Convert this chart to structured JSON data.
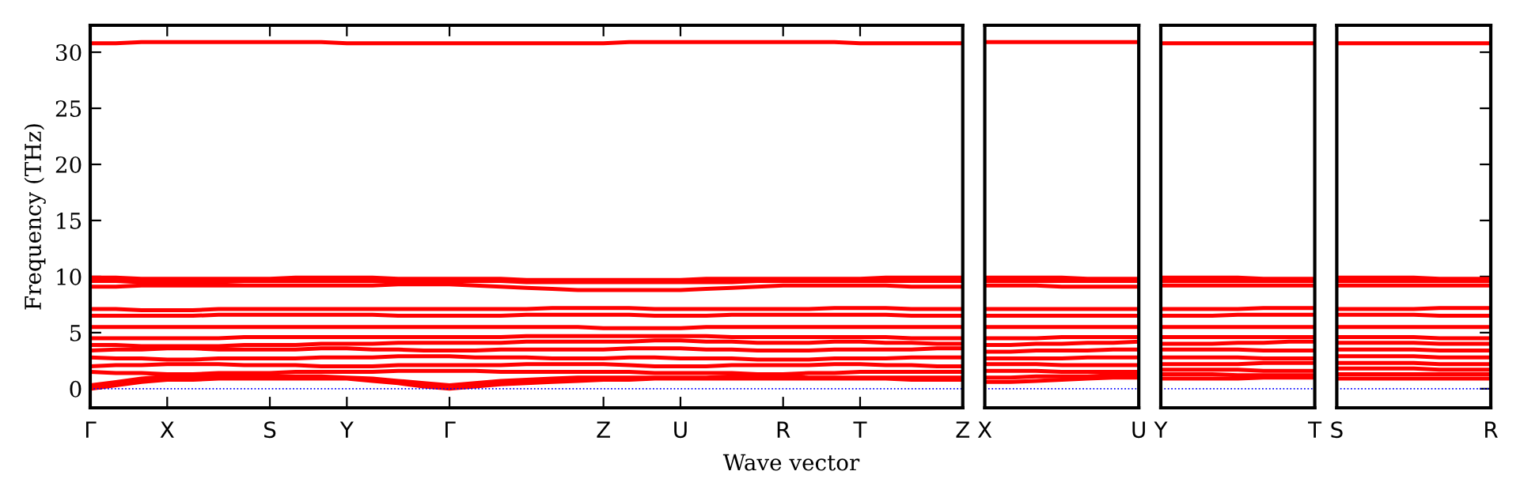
{
  "chart_data": [
    {
      "type": "line",
      "xlabel": "Wave vector",
      "ylabel": "Frequency (THz)",
      "ylim": [
        -1.7,
        32.4
      ],
      "yticks": [
        0,
        5,
        10,
        15,
        20,
        25,
        30
      ],
      "categories": [
        "Γ",
        null,
        null,
        "X",
        null,
        null,
        null,
        "S",
        null,
        null,
        "Y",
        null,
        null,
        null,
        "Γ",
        null,
        null,
        null,
        null,
        null,
        "Z",
        null,
        null,
        "U",
        null,
        null,
        null,
        "R",
        null,
        null,
        "T",
        null,
        null,
        null,
        "Z"
      ],
      "ref_lines": [
        {
          "axis": "y",
          "value": 0,
          "color": "#0000ff",
          "line_style": "dotted"
        }
      ],
      "series": [
        {
          "color": "#ff0000",
          "values": [
            0,
            0.3,
            0.6,
            0.8,
            0.8,
            0.9,
            0.9,
            0.9,
            0.9,
            0.9,
            0.9,
            0.7,
            0.5,
            0.2,
            0,
            0.2,
            0.4,
            0.5,
            0.6,
            0.7,
            0.8,
            0.8,
            0.9,
            0.9,
            0.9,
            0.9,
            0.9,
            0.9,
            0.9,
            0.9,
            0.9,
            0.9,
            0.8,
            0.8,
            0.8
          ]
        },
        {
          "color": "#ff0000",
          "values": [
            0.3,
            0.6,
            0.9,
            1.1,
            1.1,
            1.1,
            1.1,
            1.1,
            1.1,
            1.1,
            1.0,
            0.9,
            0.7,
            0.5,
            0.3,
            0.5,
            0.7,
            0.8,
            0.9,
            1.0,
            1.0,
            1.0,
            1.0,
            1.0,
            1.0,
            1.1,
            1.1,
            1.1,
            1.0,
            1.0,
            1.0,
            1.0,
            1.0,
            1.0,
            1.0
          ]
        },
        {
          "color": "#ff0000",
          "values": [
            1.5,
            1.4,
            1.4,
            1.3,
            1.3,
            1.4,
            1.4,
            1.4,
            1.5,
            1.5,
            1.5,
            1.5,
            1.6,
            1.6,
            1.6,
            1.6,
            1.5,
            1.5,
            1.5,
            1.5,
            1.5,
            1.5,
            1.4,
            1.4,
            1.4,
            1.4,
            1.3,
            1.3,
            1.4,
            1.4,
            1.5,
            1.5,
            1.5,
            1.5,
            1.5
          ]
        },
        {
          "color": "#ff0000",
          "values": [
            2.0,
            2.1,
            2.1,
            2.2,
            2.2,
            2.2,
            2.1,
            2.1,
            2.1,
            2.0,
            2.0,
            2.0,
            2.1,
            2.1,
            2.1,
            2.1,
            2.1,
            2.2,
            2.2,
            2.2,
            2.2,
            2.1,
            2.0,
            2.0,
            2.0,
            2.1,
            2.1,
            2.1,
            2.1,
            2.2,
            2.2,
            2.1,
            2.1,
            2.0,
            2.0
          ]
        },
        {
          "color": "#ff0000",
          "values": [
            2.8,
            2.7,
            2.7,
            2.6,
            2.6,
            2.7,
            2.7,
            2.7,
            2.7,
            2.8,
            2.8,
            2.8,
            2.9,
            2.9,
            2.9,
            2.8,
            2.8,
            2.8,
            2.7,
            2.7,
            2.7,
            2.8,
            2.8,
            2.7,
            2.7,
            2.7,
            2.6,
            2.6,
            2.6,
            2.7,
            2.7,
            2.7,
            2.8,
            2.8,
            2.8
          ]
        },
        {
          "color": "#ff0000",
          "values": [
            3.4,
            3.5,
            3.5,
            3.6,
            3.6,
            3.5,
            3.5,
            3.5,
            3.5,
            3.6,
            3.6,
            3.5,
            3.5,
            3.4,
            3.4,
            3.4,
            3.5,
            3.5,
            3.5,
            3.5,
            3.5,
            3.6,
            3.6,
            3.6,
            3.5,
            3.5,
            3.4,
            3.4,
            3.4,
            3.5,
            3.5,
            3.5,
            3.5,
            3.6,
            3.6
          ]
        },
        {
          "color": "#ff0000",
          "values": [
            3.9,
            3.9,
            3.8,
            3.8,
            3.8,
            3.8,
            3.9,
            3.9,
            3.9,
            4.0,
            4.0,
            4.0,
            4.1,
            4.1,
            4.1,
            4.1,
            4.1,
            4.2,
            4.2,
            4.2,
            4.2,
            4.2,
            4.3,
            4.3,
            4.2,
            4.2,
            4.1,
            4.1,
            4.1,
            4.2,
            4.2,
            4.1,
            4.1,
            4.0,
            4.0
          ]
        },
        {
          "color": "#ff0000",
          "values": [
            4.5,
            4.5,
            4.5,
            4.5,
            4.5,
            4.5,
            4.6,
            4.6,
            4.6,
            4.6,
            4.6,
            4.6,
            4.6,
            4.6,
            4.6,
            4.6,
            4.6,
            4.7,
            4.7,
            4.7,
            4.7,
            4.7,
            4.7,
            4.7,
            4.7,
            4.6,
            4.6,
            4.6,
            4.6,
            4.6,
            4.6,
            4.6,
            4.5,
            4.5,
            4.5
          ]
        },
        {
          "color": "#ff0000",
          "values": [
            5.5,
            5.5,
            5.5,
            5.5,
            5.5,
            5.5,
            5.5,
            5.5,
            5.5,
            5.5,
            5.5,
            5.5,
            5.5,
            5.5,
            5.5,
            5.5,
            5.5,
            5.5,
            5.5,
            5.5,
            5.4,
            5.4,
            5.4,
            5.4,
            5.5,
            5.5,
            5.5,
            5.5,
            5.5,
            5.5,
            5.5,
            5.5,
            5.5,
            5.5,
            5.5
          ]
        },
        {
          "color": "#ff0000",
          "values": [
            6.5,
            6.5,
            6.5,
            6.5,
            6.5,
            6.6,
            6.6,
            6.6,
            6.6,
            6.6,
            6.6,
            6.6,
            6.5,
            6.5,
            6.5,
            6.5,
            6.5,
            6.6,
            6.6,
            6.6,
            6.6,
            6.6,
            6.5,
            6.5,
            6.5,
            6.6,
            6.6,
            6.6,
            6.6,
            6.6,
            6.6,
            6.6,
            6.5,
            6.5,
            6.5
          ]
        },
        {
          "color": "#ff0000",
          "values": [
            7.1,
            7.1,
            7.0,
            7.0,
            7.0,
            7.1,
            7.1,
            7.1,
            7.1,
            7.1,
            7.1,
            7.1,
            7.1,
            7.1,
            7.1,
            7.1,
            7.1,
            7.1,
            7.2,
            7.2,
            7.2,
            7.2,
            7.1,
            7.1,
            7.1,
            7.1,
            7.1,
            7.1,
            7.1,
            7.2,
            7.2,
            7.2,
            7.1,
            7.1,
            7.1
          ]
        },
        {
          "color": "#ff0000",
          "values": [
            9.1,
            9.1,
            9.2,
            9.2,
            9.2,
            9.2,
            9.2,
            9.2,
            9.2,
            9.2,
            9.2,
            9.2,
            9.3,
            9.3,
            9.3,
            9.2,
            9.1,
            9.0,
            8.9,
            8.8,
            8.8,
            8.8,
            8.8,
            8.8,
            8.9,
            9.0,
            9.1,
            9.2,
            9.2,
            9.2,
            9.2,
            9.2,
            9.1,
            9.1,
            9.1
          ]
        },
        {
          "color": "#ff0000",
          "values": [
            9.6,
            9.6,
            9.5,
            9.5,
            9.5,
            9.5,
            9.6,
            9.6,
            9.6,
            9.6,
            9.6,
            9.6,
            9.6,
            9.6,
            9.6,
            9.6,
            9.6,
            9.5,
            9.5,
            9.5,
            9.5,
            9.5,
            9.5,
            9.5,
            9.5,
            9.5,
            9.6,
            9.6,
            9.6,
            9.6,
            9.6,
            9.6,
            9.6,
            9.6,
            9.6
          ]
        },
        {
          "color": "#ff0000",
          "values": [
            9.9,
            9.9,
            9.8,
            9.8,
            9.8,
            9.8,
            9.8,
            9.8,
            9.9,
            9.9,
            9.9,
            9.9,
            9.8,
            9.8,
            9.8,
            9.8,
            9.8,
            9.7,
            9.7,
            9.7,
            9.7,
            9.7,
            9.7,
            9.7,
            9.8,
            9.8,
            9.8,
            9.8,
            9.8,
            9.8,
            9.8,
            9.9,
            9.9,
            9.9,
            9.9
          ]
        },
        {
          "color": "#ff0000",
          "values": [
            30.8,
            30.8,
            30.9,
            30.9,
            30.9,
            30.9,
            30.9,
            30.9,
            30.9,
            30.9,
            30.8,
            30.8,
            30.8,
            30.8,
            30.8,
            30.8,
            30.8,
            30.8,
            30.8,
            30.8,
            30.8,
            30.9,
            30.9,
            30.9,
            30.9,
            30.9,
            30.9,
            30.9,
            30.9,
            30.9,
            30.8,
            30.8,
            30.8,
            30.8,
            30.8
          ]
        }
      ]
    },
    {
      "type": "line",
      "ylim": [
        -1.7,
        32.4
      ],
      "yticks": [
        0,
        5,
        10,
        15,
        20,
        25,
        30
      ],
      "tick_labels": "x",
      "categories": [
        "X",
        null,
        null,
        null,
        null,
        null,
        "U"
      ],
      "ref_lines": [
        {
          "axis": "y",
          "value": 0,
          "color": "#0000ff",
          "line_style": "dotted"
        }
      ],
      "series": [
        {
          "color": "#ff0000",
          "values": [
            0.6,
            0.6,
            0.7,
            0.8,
            0.9,
            1.0,
            1.0
          ]
        },
        {
          "color": "#ff0000",
          "values": [
            1.0,
            1.0,
            1.1,
            1.1,
            1.1,
            1.2,
            1.2
          ]
        },
        {
          "color": "#ff0000",
          "values": [
            1.6,
            1.6,
            1.6,
            1.5,
            1.5,
            1.5,
            1.5
          ]
        },
        {
          "color": "#ff0000",
          "values": [
            2.2,
            2.2,
            2.2,
            2.1,
            2.1,
            2.1,
            2.1
          ]
        },
        {
          "color": "#ff0000",
          "values": [
            2.7,
            2.7,
            2.7,
            2.7,
            2.8,
            2.8,
            2.8
          ]
        },
        {
          "color": "#ff0000",
          "values": [
            3.3,
            3.3,
            3.4,
            3.4,
            3.4,
            3.5,
            3.5
          ]
        },
        {
          "color": "#ff0000",
          "values": [
            3.9,
            3.9,
            4.0,
            4.0,
            4.1,
            4.1,
            4.2
          ]
        },
        {
          "color": "#ff0000",
          "values": [
            4.5,
            4.5,
            4.5,
            4.6,
            4.6,
            4.6,
            4.6
          ]
        },
        {
          "color": "#ff0000",
          "values": [
            5.5,
            5.5,
            5.5,
            5.5,
            5.5,
            5.5,
            5.5
          ]
        },
        {
          "color": "#ff0000",
          "values": [
            6.5,
            6.5,
            6.5,
            6.5,
            6.5,
            6.5,
            6.5
          ]
        },
        {
          "color": "#ff0000",
          "values": [
            7.1,
            7.1,
            7.1,
            7.1,
            7.1,
            7.1,
            7.1
          ]
        },
        {
          "color": "#ff0000",
          "values": [
            9.2,
            9.2,
            9.2,
            9.1,
            9.1,
            9.1,
            9.1
          ]
        },
        {
          "color": "#ff0000",
          "values": [
            9.6,
            9.6,
            9.6,
            9.6,
            9.6,
            9.6,
            9.6
          ]
        },
        {
          "color": "#ff0000",
          "values": [
            9.9,
            9.9,
            9.9,
            9.9,
            9.8,
            9.8,
            9.8
          ]
        },
        {
          "color": "#ff0000",
          "values": [
            30.9,
            30.9,
            30.9,
            30.9,
            30.9,
            30.9,
            30.9
          ]
        }
      ]
    },
    {
      "type": "line",
      "ylim": [
        -1.7,
        32.4
      ],
      "yticks": [
        0,
        5,
        10,
        15,
        20,
        25,
        30
      ],
      "tick_labels": "x",
      "categories": [
        "Y",
        null,
        null,
        null,
        null,
        null,
        "T"
      ],
      "ref_lines": [
        {
          "axis": "y",
          "value": 0,
          "color": "#0000ff",
          "line_style": "dotted"
        }
      ],
      "series": [
        {
          "color": "#ff0000",
          "values": [
            0.9,
            0.9,
            0.9,
            0.9,
            1.0,
            1.0,
            1.0
          ]
        },
        {
          "color": "#ff0000",
          "values": [
            1.3,
            1.3,
            1.3,
            1.2,
            1.2,
            1.2,
            1.2
          ]
        },
        {
          "color": "#ff0000",
          "values": [
            1.7,
            1.7,
            1.7,
            1.7,
            1.6,
            1.6,
            1.6
          ]
        },
        {
          "color": "#ff0000",
          "values": [
            2.2,
            2.2,
            2.2,
            2.2,
            2.3,
            2.3,
            2.3
          ]
        },
        {
          "color": "#ff0000",
          "values": [
            2.8,
            2.8,
            2.8,
            2.8,
            2.7,
            2.7,
            2.7
          ]
        },
        {
          "color": "#ff0000",
          "values": [
            3.5,
            3.5,
            3.5,
            3.5,
            3.4,
            3.4,
            3.4
          ]
        },
        {
          "color": "#ff0000",
          "values": [
            4.0,
            4.0,
            4.0,
            4.1,
            4.1,
            4.2,
            4.2
          ]
        },
        {
          "color": "#ff0000",
          "values": [
            4.6,
            4.6,
            4.6,
            4.6,
            4.6,
            4.6,
            4.6
          ]
        },
        {
          "color": "#ff0000",
          "values": [
            5.5,
            5.5,
            5.5,
            5.5,
            5.5,
            5.5,
            5.5
          ]
        },
        {
          "color": "#ff0000",
          "values": [
            6.5,
            6.5,
            6.5,
            6.6,
            6.6,
            6.6,
            6.6
          ]
        },
        {
          "color": "#ff0000",
          "values": [
            7.1,
            7.1,
            7.1,
            7.1,
            7.2,
            7.2,
            7.2
          ]
        },
        {
          "color": "#ff0000",
          "values": [
            9.2,
            9.2,
            9.2,
            9.2,
            9.2,
            9.2,
            9.2
          ]
        },
        {
          "color": "#ff0000",
          "values": [
            9.6,
            9.6,
            9.6,
            9.6,
            9.6,
            9.6,
            9.6
          ]
        },
        {
          "color": "#ff0000",
          "values": [
            9.9,
            9.9,
            9.9,
            9.9,
            9.8,
            9.8,
            9.8
          ]
        },
        {
          "color": "#ff0000",
          "values": [
            30.8,
            30.8,
            30.8,
            30.8,
            30.8,
            30.8,
            30.8
          ]
        }
      ]
    },
    {
      "type": "line",
      "ylim": [
        -1.7,
        32.4
      ],
      "yticks": [
        0,
        5,
        10,
        15,
        20,
        25,
        30
      ],
      "tick_labels": "x",
      "categories": [
        "S",
        null,
        null,
        null,
        null,
        null,
        "R"
      ],
      "ref_lines": [
        {
          "axis": "y",
          "value": 0,
          "color": "#0000ff",
          "line_style": "dotted"
        }
      ],
      "series": [
        {
          "color": "#ff0000",
          "values": [
            0.9,
            0.9,
            0.9,
            0.9,
            0.9,
            0.9,
            0.9
          ]
        },
        {
          "color": "#ff0000",
          "values": [
            1.3,
            1.3,
            1.3,
            1.3,
            1.3,
            1.3,
            1.3
          ]
        },
        {
          "color": "#ff0000",
          "values": [
            1.8,
            1.8,
            1.8,
            1.8,
            1.7,
            1.7,
            1.7
          ]
        },
        {
          "color": "#ff0000",
          "values": [
            2.3,
            2.3,
            2.3,
            2.3,
            2.2,
            2.2,
            2.2
          ]
        },
        {
          "color": "#ff0000",
          "values": [
            2.9,
            2.9,
            2.9,
            2.9,
            2.8,
            2.8,
            2.8
          ]
        },
        {
          "color": "#ff0000",
          "values": [
            3.5,
            3.5,
            3.5,
            3.5,
            3.4,
            3.4,
            3.4
          ]
        },
        {
          "color": "#ff0000",
          "values": [
            4.1,
            4.1,
            4.1,
            4.1,
            4.0,
            4.0,
            4.0
          ]
        },
        {
          "color": "#ff0000",
          "values": [
            4.6,
            4.6,
            4.6,
            4.6,
            4.5,
            4.5,
            4.5
          ]
        },
        {
          "color": "#ff0000",
          "values": [
            5.5,
            5.5,
            5.5,
            5.5,
            5.5,
            5.5,
            5.5
          ]
        },
        {
          "color": "#ff0000",
          "values": [
            6.6,
            6.6,
            6.6,
            6.6,
            6.5,
            6.5,
            6.5
          ]
        },
        {
          "color": "#ff0000",
          "values": [
            7.1,
            7.1,
            7.1,
            7.1,
            7.2,
            7.2,
            7.2
          ]
        },
        {
          "color": "#ff0000",
          "values": [
            9.2,
            9.2,
            9.2,
            9.2,
            9.2,
            9.2,
            9.2
          ]
        },
        {
          "color": "#ff0000",
          "values": [
            9.6,
            9.6,
            9.6,
            9.6,
            9.6,
            9.6,
            9.6
          ]
        },
        {
          "color": "#ff0000",
          "values": [
            9.9,
            9.9,
            9.9,
            9.9,
            9.8,
            9.8,
            9.8
          ]
        },
        {
          "color": "#ff0000",
          "values": [
            30.8,
            30.8,
            30.8,
            30.8,
            30.8,
            30.8,
            30.8
          ]
        }
      ]
    }
  ]
}
